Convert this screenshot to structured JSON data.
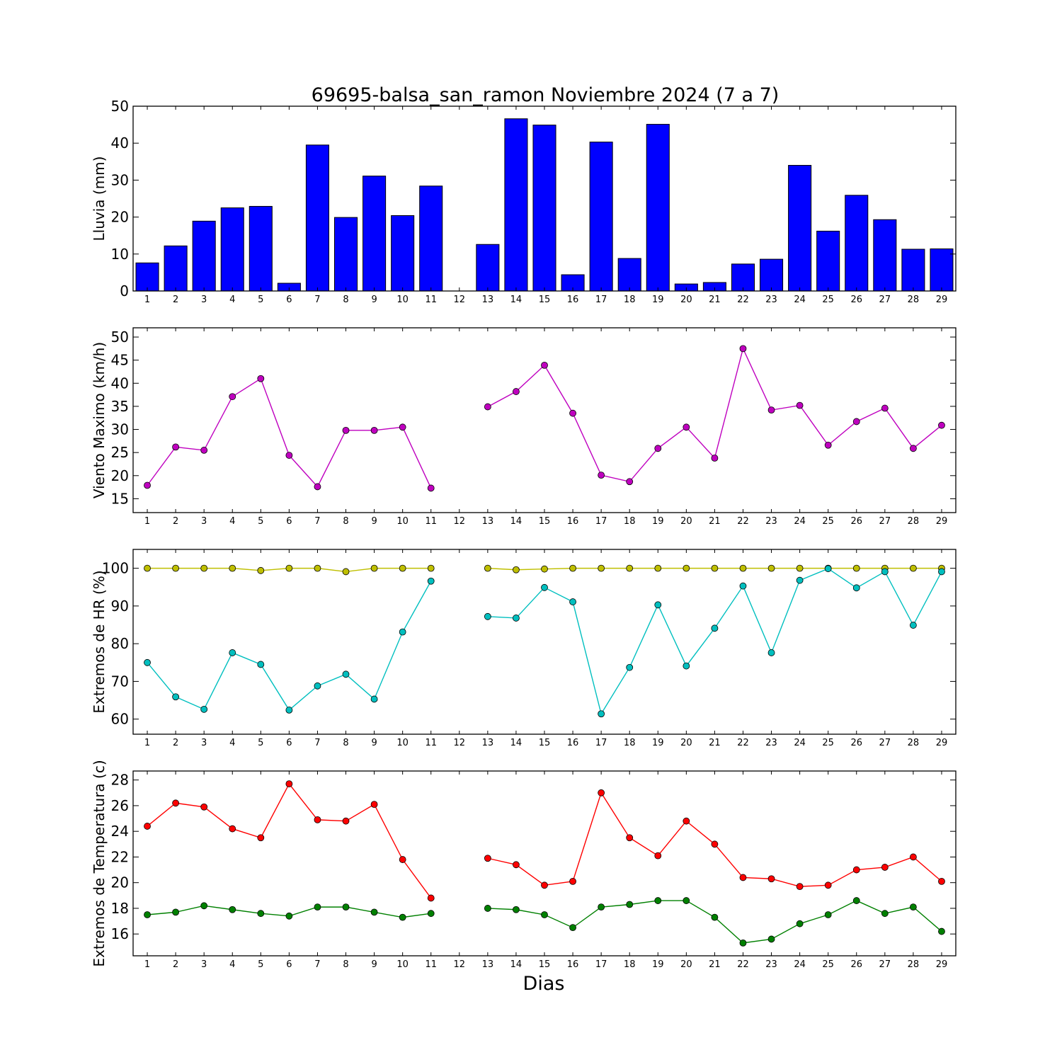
{
  "title": "69695-balsa_san_ramon Noviembre 2024  (7 a 7)",
  "xlabel": "Dias",
  "chart_data": [
    {
      "type": "bar",
      "ylabel": "Lluvia (mm)",
      "ylim": [
        0,
        50
      ],
      "yticks": [
        0,
        10,
        20,
        30,
        40,
        50
      ],
      "x": [
        1,
        2,
        3,
        4,
        5,
        6,
        7,
        8,
        9,
        10,
        11,
        12,
        13,
        14,
        15,
        16,
        17,
        18,
        19,
        20,
        21,
        22,
        23,
        24,
        25,
        26,
        27,
        28,
        29
      ],
      "series": [
        {
          "color": "#0000ff",
          "values": [
            7.6,
            12.2,
            18.9,
            22.5,
            22.9,
            2.1,
            39.5,
            19.9,
            31.1,
            20.4,
            28.4,
            null,
            12.6,
            46.6,
            44.9,
            4.4,
            40.3,
            8.8,
            45.1,
            1.9,
            2.3,
            7.3,
            8.6,
            34.0,
            16.2,
            25.9,
            19.3,
            11.3,
            11.4
          ]
        }
      ]
    },
    {
      "type": "line",
      "ylabel": "Viento Maximo (km/h)",
      "ylim": [
        12,
        52
      ],
      "yticks": [
        15,
        20,
        25,
        30,
        35,
        40,
        45,
        50
      ],
      "x": [
        1,
        2,
        3,
        4,
        5,
        6,
        7,
        8,
        9,
        10,
        11,
        12,
        13,
        14,
        15,
        16,
        17,
        18,
        19,
        20,
        21,
        22,
        23,
        24,
        25,
        26,
        27,
        28,
        29
      ],
      "series": [
        {
          "color": "#bf00bf",
          "values": [
            17.9,
            26.2,
            25.5,
            37.1,
            41.0,
            24.4,
            17.6,
            29.8,
            29.8,
            30.5,
            17.3,
            null,
            34.9,
            38.2,
            43.9,
            33.5,
            20.1,
            18.7,
            25.9,
            30.5,
            23.8,
            47.5,
            34.2,
            35.2,
            26.6,
            31.7,
            34.6,
            25.9,
            30.9
          ]
        }
      ]
    },
    {
      "type": "line",
      "ylabel": "Extremos de HR (%)",
      "ylim": [
        56,
        105
      ],
      "yticks": [
        60,
        70,
        80,
        90,
        100
      ],
      "x": [
        1,
        2,
        3,
        4,
        5,
        6,
        7,
        8,
        9,
        10,
        11,
        12,
        13,
        14,
        15,
        16,
        17,
        18,
        19,
        20,
        21,
        22,
        23,
        24,
        25,
        26,
        27,
        28,
        29
      ],
      "series": [
        {
          "color": "#bfbf00",
          "values": [
            100,
            100,
            100,
            100,
            99.4,
            100,
            100,
            99.1,
            100,
            100,
            100,
            null,
            100,
            99.6,
            99.8,
            100,
            100,
            100,
            100,
            100,
            100,
            100,
            100,
            100,
            100,
            100,
            100,
            100,
            100
          ]
        },
        {
          "color": "#00bfbf",
          "values": [
            75.0,
            65.9,
            62.6,
            77.6,
            74.5,
            62.4,
            68.8,
            71.9,
            65.3,
            83.1,
            96.6,
            null,
            87.2,
            86.8,
            94.9,
            91.1,
            61.4,
            73.7,
            90.3,
            74.1,
            84.1,
            95.3,
            77.6,
            96.8,
            99.9,
            94.8,
            99.1,
            84.9,
            99.1
          ]
        }
      ]
    },
    {
      "type": "line",
      "ylabel": "Extremos de Temperatura (c)",
      "ylim": [
        14.3,
        28.7
      ],
      "yticks": [
        16,
        18,
        20,
        22,
        24,
        26,
        28
      ],
      "x": [
        1,
        2,
        3,
        4,
        5,
        6,
        7,
        8,
        9,
        10,
        11,
        12,
        13,
        14,
        15,
        16,
        17,
        18,
        19,
        20,
        21,
        22,
        23,
        24,
        25,
        26,
        27,
        28,
        29
      ],
      "series": [
        {
          "color": "#ff0000",
          "values": [
            24.4,
            26.2,
            25.9,
            24.2,
            23.5,
            27.7,
            24.9,
            24.8,
            26.1,
            21.8,
            18.8,
            null,
            21.9,
            21.4,
            19.8,
            20.1,
            27.0,
            23.5,
            22.1,
            24.8,
            23.0,
            20.4,
            20.3,
            19.7,
            19.8,
            21.0,
            21.2,
            22.0,
            20.1
          ]
        },
        {
          "color": "#008000",
          "values": [
            17.5,
            17.7,
            18.2,
            17.9,
            17.6,
            17.4,
            18.1,
            18.1,
            17.7,
            17.3,
            17.6,
            null,
            18.0,
            17.9,
            17.5,
            16.5,
            18.1,
            18.3,
            18.6,
            18.6,
            17.3,
            15.3,
            15.6,
            16.8,
            17.5,
            18.6,
            17.6,
            18.1,
            16.2
          ]
        }
      ]
    }
  ]
}
